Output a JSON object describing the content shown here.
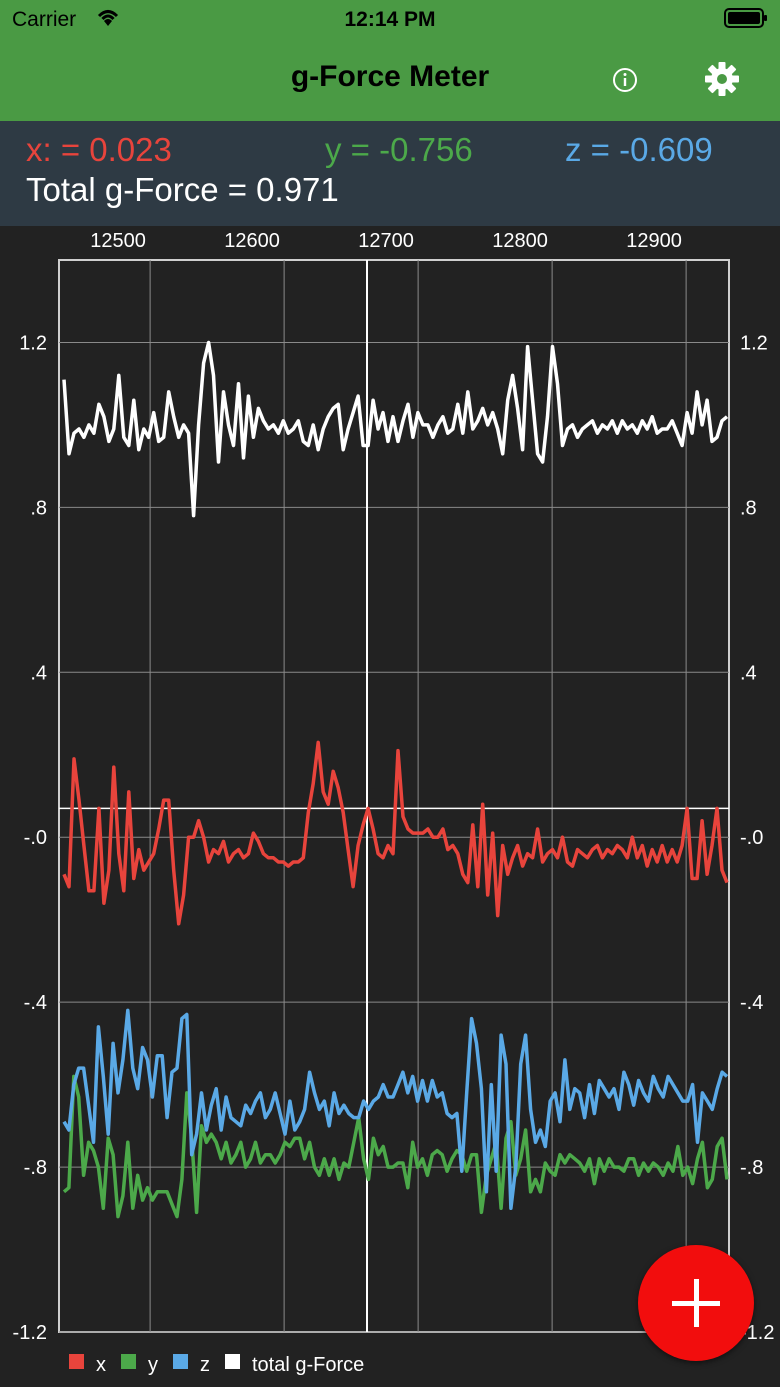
{
  "status_bar": {
    "carrier": "Carrier",
    "time": "12:14 PM"
  },
  "nav": {
    "title": "g-Force Meter"
  },
  "readout": {
    "x_text": "x: = 0.023",
    "y_text": "y = -0.756",
    "z_text": "z = -0.609",
    "total_text": "Total g-Force = 0.971"
  },
  "colors": {
    "nav_bg": "#4a9a44",
    "x": "#e8443c",
    "y": "#4ca94a",
    "z": "#5aa9e6",
    "total": "#ffffff",
    "fab": "#f20d0d"
  },
  "chart_data": {
    "type": "line",
    "x_range": [
      12432,
      12932
    ],
    "x_ticks": [
      "12500",
      "12600",
      "12700",
      "12800",
      "12900"
    ],
    "y_range": [
      -1.2,
      1.4
    ],
    "y_ticks_left": [
      "1.2",
      ".8",
      ".4",
      "-.0",
      "-.4",
      "-.8",
      "-1.2"
    ],
    "y_ticks_right": [
      "1.2",
      ".8",
      ".4",
      "-.0",
      "-.4",
      "-.8",
      "-1.2"
    ],
    "y_tick_values": [
      1.2,
      0.8,
      0.4,
      0.0,
      -0.4,
      -0.8,
      -1.2
    ],
    "grid": true,
    "legend_position": "bottom-left",
    "series": [
      {
        "name": "total g-Force",
        "key": "total",
        "values": [
          1.11,
          0.93,
          0.98,
          0.99,
          0.97,
          1.0,
          0.98,
          1.05,
          1.02,
          0.96,
          0.99,
          1.12,
          0.97,
          0.95,
          1.06,
          0.94,
          0.99,
          0.97,
          1.03,
          0.96,
          0.97,
          1.08,
          1.02,
          0.97,
          1.0,
          0.98,
          0.78,
          1.0,
          1.15,
          1.2,
          1.12,
          0.91,
          1.08,
          1.0,
          0.95,
          1.1,
          0.92,
          1.07,
          0.97,
          1.04,
          1.01,
          0.99,
          1.0,
          0.98,
          1.01,
          0.98,
          0.99,
          1.01,
          0.96,
          0.95,
          1.0,
          0.94,
          0.99,
          1.02,
          1.04,
          1.05,
          0.94,
          0.99,
          1.03,
          1.07,
          0.95,
          0.95,
          1.06,
          0.99,
          1.03,
          0.96,
          1.02,
          0.96,
          1.01,
          1.05,
          0.97,
          1.03,
          1.0,
          1.0,
          0.97,
          1.0,
          1.02,
          0.98,
          0.99,
          1.05,
          0.98,
          1.08,
          0.99,
          1.01,
          1.04,
          1.0,
          1.03,
          0.99,
          0.93,
          1.06,
          1.12,
          1.04,
          0.94,
          1.19,
          1.06,
          0.93,
          0.91,
          1.02,
          1.19,
          1.1,
          0.95,
          0.99,
          1.0,
          0.97,
          0.99,
          1.0,
          1.01,
          0.98,
          1.0,
          0.99,
          1.01,
          0.98,
          1.01,
          0.99,
          1.0,
          0.98,
          1.01,
          0.99,
          1.02,
          0.98,
          0.99,
          0.99,
          1.01,
          0.98,
          0.95,
          1.03,
          0.98,
          1.08,
          1.0,
          1.06,
          0.96,
          0.97,
          1.01,
          1.02
        ]
      },
      {
        "name": "x",
        "key": "x",
        "values": [
          -0.09,
          -0.12,
          0.19,
          0.09,
          -0.02,
          -0.13,
          -0.13,
          0.07,
          -0.16,
          -0.08,
          0.17,
          -0.04,
          -0.13,
          0.11,
          -0.1,
          -0.03,
          -0.08,
          -0.06,
          -0.04,
          0.02,
          0.09,
          0.09,
          -0.08,
          -0.21,
          -0.14,
          0.0,
          0.0,
          0.04,
          0.0,
          -0.06,
          -0.03,
          -0.04,
          -0.01,
          -0.06,
          -0.04,
          -0.03,
          -0.05,
          -0.04,
          0.01,
          -0.01,
          -0.04,
          -0.05,
          -0.05,
          -0.06,
          -0.06,
          -0.07,
          -0.06,
          -0.06,
          -0.05,
          0.06,
          0.13,
          0.23,
          0.11,
          0.08,
          0.16,
          0.12,
          0.06,
          -0.03,
          -0.12,
          -0.02,
          0.03,
          0.07,
          0.02,
          -0.04,
          -0.05,
          -0.02,
          -0.04,
          0.21,
          0.05,
          0.02,
          0.01,
          0.01,
          0.01,
          0.02,
          -0.0,
          0.0,
          0.02,
          -0.03,
          -0.02,
          -0.04,
          -0.09,
          -0.11,
          0.03,
          -0.12,
          0.08,
          -0.14,
          0.01,
          -0.19,
          -0.02,
          -0.09,
          -0.05,
          -0.02,
          -0.07,
          -0.04,
          -0.05,
          0.02,
          -0.06,
          -0.04,
          -0.03,
          -0.05,
          -0.0,
          -0.06,
          -0.07,
          -0.03,
          -0.04,
          -0.05,
          -0.03,
          -0.02,
          -0.05,
          -0.03,
          -0.04,
          -0.02,
          -0.03,
          -0.05,
          0.0,
          -0.05,
          -0.02,
          -0.07,
          -0.03,
          -0.06,
          -0.02,
          -0.06,
          -0.03,
          -0.06,
          -0.02,
          0.07,
          -0.1,
          -0.1,
          0.04,
          -0.09,
          -0.02,
          0.07,
          -0.08,
          -0.11
        ]
      },
      {
        "name": "y",
        "key": "y",
        "values": [
          -0.86,
          -0.85,
          -0.58,
          -0.63,
          -0.82,
          -0.74,
          -0.76,
          -0.8,
          -0.9,
          -0.73,
          -0.77,
          -0.92,
          -0.87,
          -0.74,
          -0.9,
          -0.82,
          -0.88,
          -0.85,
          -0.88,
          -0.86,
          -0.86,
          -0.86,
          -0.89,
          -0.92,
          -0.83,
          -0.62,
          -0.73,
          -0.91,
          -0.7,
          -0.74,
          -0.72,
          -0.74,
          -0.78,
          -0.74,
          -0.79,
          -0.77,
          -0.74,
          -0.8,
          -0.78,
          -0.74,
          -0.79,
          -0.77,
          -0.77,
          -0.79,
          -0.77,
          -0.74,
          -0.75,
          -0.73,
          -0.73,
          -0.78,
          -0.74,
          -0.8,
          -0.82,
          -0.78,
          -0.82,
          -0.78,
          -0.83,
          -0.79,
          -0.8,
          -0.74,
          -0.68,
          -0.78,
          -0.83,
          -0.73,
          -0.77,
          -0.75,
          -0.8,
          -0.8,
          -0.79,
          -0.79,
          -0.85,
          -0.74,
          -0.8,
          -0.78,
          -0.82,
          -0.77,
          -0.76,
          -0.77,
          -0.81,
          -0.78,
          -0.76,
          -0.77,
          -0.81,
          -0.77,
          -0.77,
          -0.91,
          -0.82,
          -0.78,
          -0.74,
          -0.9,
          -0.73,
          -0.69,
          -0.82,
          -0.78,
          -0.71,
          -0.86,
          -0.83,
          -0.86,
          -0.79,
          -0.81,
          -0.82,
          -0.77,
          -0.79,
          -0.77,
          -0.78,
          -0.79,
          -0.81,
          -0.78,
          -0.84,
          -0.78,
          -0.81,
          -0.78,
          -0.8,
          -0.8,
          -0.81,
          -0.78,
          -0.78,
          -0.82,
          -0.79,
          -0.81,
          -0.79,
          -0.8,
          -0.82,
          -0.79,
          -0.81,
          -0.75,
          -0.82,
          -0.8,
          -0.84,
          -0.78,
          -0.74,
          -0.85,
          -0.83,
          -0.75,
          -0.73,
          -0.83
        ]
      },
      {
        "name": "z",
        "key": "z",
        "values": [
          -0.69,
          -0.71,
          -0.6,
          -0.56,
          -0.56,
          -0.65,
          -0.74,
          -0.46,
          -0.58,
          -0.72,
          -0.5,
          -0.62,
          -0.54,
          -0.42,
          -0.56,
          -0.61,
          -0.51,
          -0.54,
          -0.63,
          -0.53,
          -0.53,
          -0.68,
          -0.57,
          -0.56,
          -0.44,
          -0.43,
          -0.77,
          -0.72,
          -0.62,
          -0.71,
          -0.65,
          -0.61,
          -0.71,
          -0.63,
          -0.68,
          -0.69,
          -0.7,
          -0.65,
          -0.67,
          -0.64,
          -0.62,
          -0.68,
          -0.66,
          -0.62,
          -0.67,
          -0.72,
          -0.64,
          -0.71,
          -0.69,
          -0.66,
          -0.57,
          -0.62,
          -0.66,
          -0.64,
          -0.7,
          -0.62,
          -0.67,
          -0.65,
          -0.67,
          -0.68,
          -0.68,
          -0.64,
          -0.66,
          -0.64,
          -0.63,
          -0.6,
          -0.63,
          -0.63,
          -0.6,
          -0.57,
          -0.62,
          -0.58,
          -0.64,
          -0.59,
          -0.64,
          -0.59,
          -0.63,
          -0.62,
          -0.67,
          -0.68,
          -0.67,
          -0.81,
          -0.62,
          -0.44,
          -0.5,
          -0.61,
          -0.86,
          -0.6,
          -0.81,
          -0.48,
          -0.55,
          -0.9,
          -0.8,
          -0.55,
          -0.48,
          -0.66,
          -0.74,
          -0.71,
          -0.75,
          -0.64,
          -0.62,
          -0.69,
          -0.54,
          -0.66,
          -0.61,
          -0.62,
          -0.68,
          -0.6,
          -0.67,
          -0.59,
          -0.61,
          -0.63,
          -0.61,
          -0.66,
          -0.57,
          -0.6,
          -0.65,
          -0.59,
          -0.62,
          -0.64,
          -0.58,
          -0.61,
          -0.63,
          -0.58,
          -0.6,
          -0.62,
          -0.64,
          -0.64,
          -0.6,
          -0.74,
          -0.62,
          -0.64,
          -0.66,
          -0.61,
          -0.57,
          -0.58
        ]
      }
    ],
    "legend": [
      "x",
      "y",
      "z",
      "total g-Force"
    ]
  }
}
